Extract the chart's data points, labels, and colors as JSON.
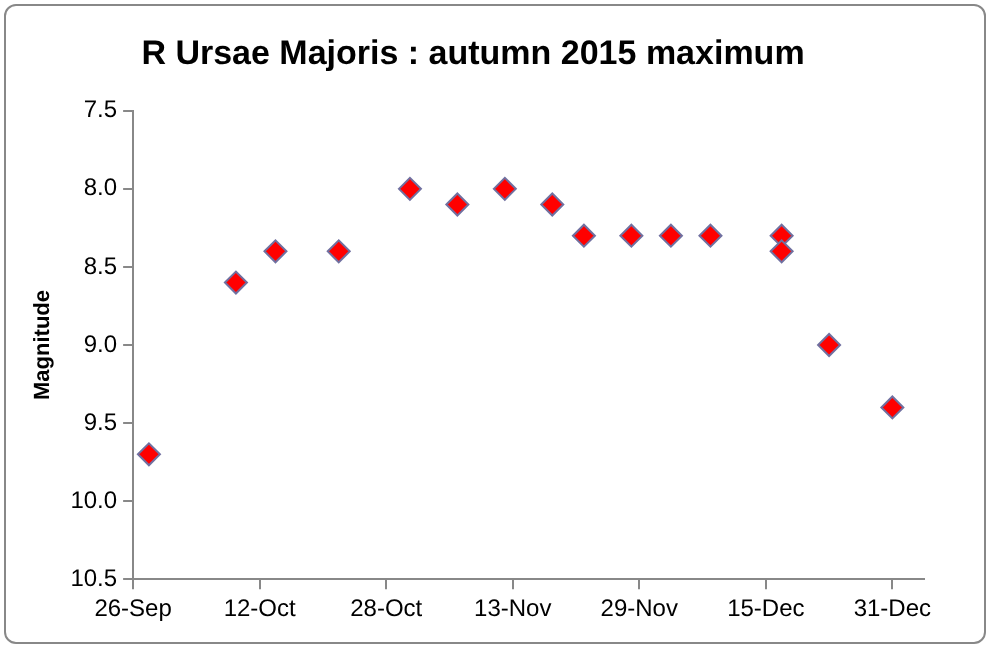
{
  "chart_data": {
    "type": "scatter",
    "title": "R Ursae Majoris : autumn 2015 maximum",
    "ylabel": "Magnitude",
    "x": [
      "2015-09-28",
      "2015-10-09",
      "2015-10-14",
      "2015-10-22",
      "2015-10-31",
      "2015-11-06",
      "2015-11-12",
      "2015-11-18",
      "2015-11-22",
      "2015-11-28",
      "2015-12-03",
      "2015-12-08",
      "2015-12-17",
      "2015-12-17",
      "2015-12-23",
      "2015-12-31"
    ],
    "series": [
      {
        "color": "#ff0000",
        "values": [
          9.7,
          8.6,
          8.4,
          8.4,
          8.0,
          8.1,
          8.0,
          8.1,
          8.3,
          8.3,
          8.3,
          8.3,
          8.3,
          8.4,
          9.0,
          9.4
        ]
      }
    ],
    "marker": "diamond",
    "grid": false,
    "legend": false,
    "xlim": [
      "2015-09-26",
      "2016-01-04"
    ],
    "xticks": [
      {
        "value": "2015-09-26",
        "label": "26-Sep"
      },
      {
        "value": "2015-10-12",
        "label": "12-Oct"
      },
      {
        "value": "2015-10-28",
        "label": "28-Oct"
      },
      {
        "value": "2015-11-13",
        "label": "13-Nov"
      },
      {
        "value": "2015-11-29",
        "label": "29-Nov"
      },
      {
        "value": "2015-12-15",
        "label": "15-Dec"
      },
      {
        "value": "2015-12-31",
        "label": "31-Dec"
      }
    ],
    "ylim": [
      10.5,
      7.5
    ],
    "yticks": [
      {
        "value": 7.5,
        "label": "7.5"
      },
      {
        "value": 8,
        "label": "8.0"
      },
      {
        "value": 8.5,
        "label": "8.5"
      },
      {
        "value": 9,
        "label": "9.0"
      },
      {
        "value": 9.5,
        "label": "9.5"
      },
      {
        "value": 10,
        "label": "10.0"
      },
      {
        "value": 10.5,
        "label": "10.5"
      }
    ]
  }
}
